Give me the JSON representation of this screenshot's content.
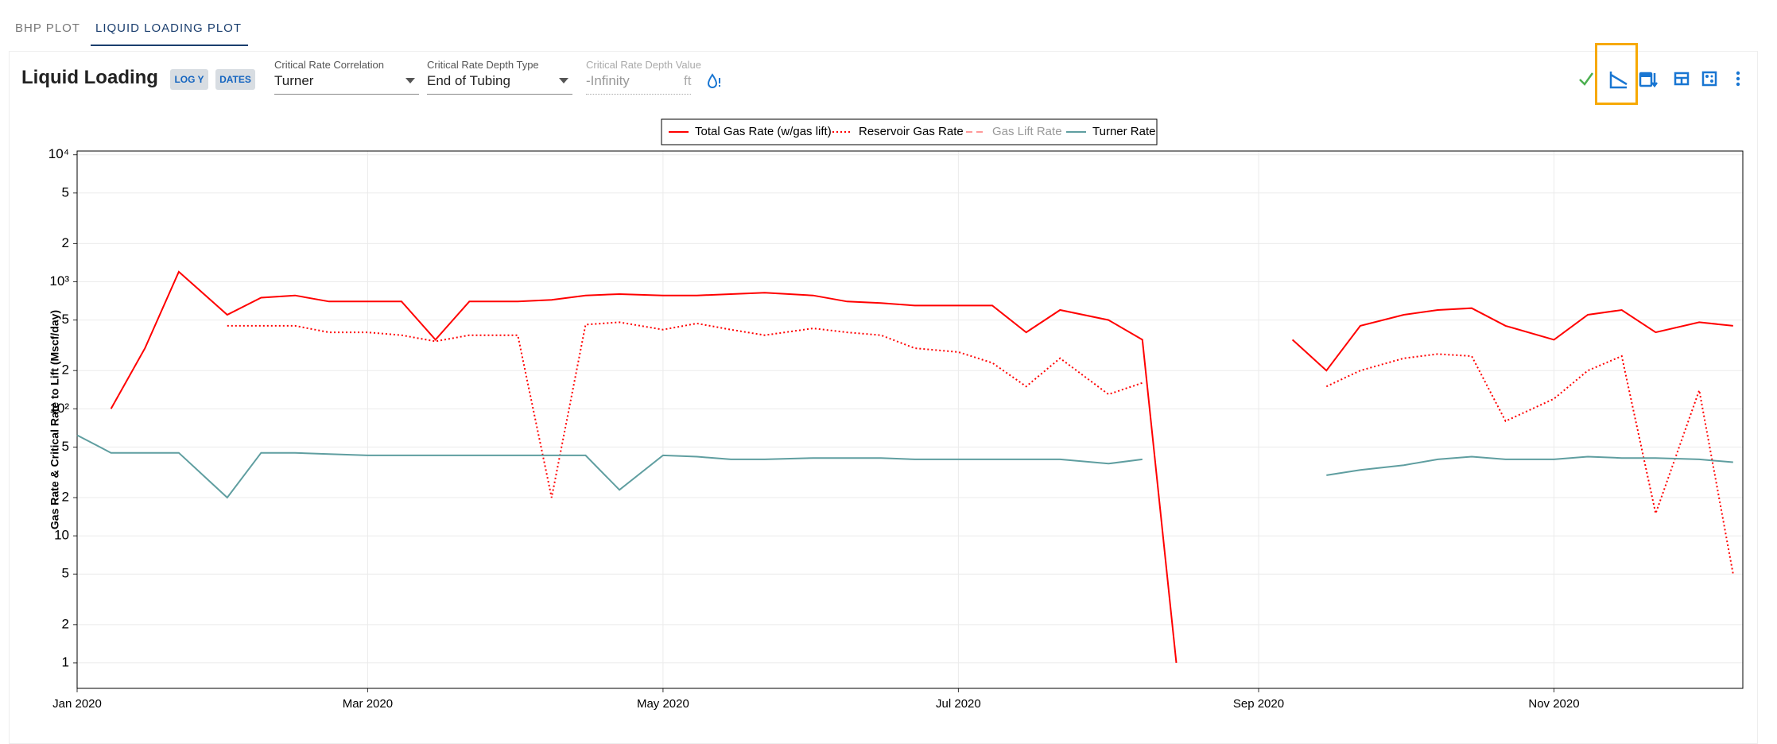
{
  "tabs": [
    "BHP PLOT",
    "LIQUID LOADING PLOT"
  ],
  "header": {
    "title": "Liquid Loading",
    "buttons": [
      "LOG Y",
      "DATES"
    ]
  },
  "controls": [
    {
      "label": "Critical Rate Correlation",
      "value": "Turner"
    },
    {
      "label": "Critical Rate Depth Type",
      "value": "End of Tubing"
    },
    {
      "label": "Critical Rate Depth Value",
      "value": "-Infinity",
      "unit": "ft"
    }
  ],
  "chart_data": {
    "type": "line",
    "y_label": "Gas Rate & Critical Rate to Lift (Mscf/day)",
    "log_y": true,
    "grid": true,
    "xlim": [
      "2020-01-01",
      "2020-12-10"
    ],
    "xticks": [
      {
        "value": "2020-01-01",
        "label": "Jan 2020"
      },
      {
        "value": "2020-03-01",
        "label": "Mar 2020"
      },
      {
        "value": "2020-05-01",
        "label": "May 2020"
      },
      {
        "value": "2020-07-01",
        "label": "Jul 2020"
      },
      {
        "value": "2020-09-01",
        "label": "Sep 2020"
      },
      {
        "value": "2020-11-01",
        "label": "Nov 2020"
      }
    ],
    "ylim": [
      0.63,
      10700
    ],
    "yticks": [
      1,
      2,
      5,
      10,
      {
        "value": 20,
        "label": "2"
      },
      {
        "value": 50,
        "label": "5"
      },
      {
        "value": 100,
        "label": "10²"
      },
      {
        "value": 200,
        "label": "2"
      },
      {
        "value": 500,
        "label": "5"
      },
      {
        "value": 1000,
        "label": "10³"
      },
      {
        "value": 2000,
        "label": "2"
      },
      {
        "value": 5000,
        "label": "5"
      },
      {
        "value": 10000,
        "label": "10⁴"
      }
    ],
    "x": [
      "2020-01-01",
      "2020-01-08",
      "2020-01-15",
      "2020-01-22",
      "2020-02-01",
      "2020-02-08",
      "2020-02-15",
      "2020-02-22",
      "2020-03-01",
      "2020-03-08",
      "2020-03-15",
      "2020-03-22",
      "2020-04-01",
      "2020-04-08",
      "2020-04-15",
      "2020-04-22",
      "2020-05-01",
      "2020-05-08",
      "2020-05-15",
      "2020-05-22",
      "2020-06-01",
      "2020-06-08",
      "2020-06-15",
      "2020-06-22",
      "2020-07-01",
      "2020-07-08",
      "2020-07-15",
      "2020-07-22",
      "2020-08-01",
      "2020-08-08",
      "2020-08-15",
      "2020-08-22",
      "2020-09-01",
      "2020-09-08",
      "2020-09-15",
      "2020-09-22",
      "2020-10-01",
      "2020-10-08",
      "2020-10-15",
      "2020-10-22",
      "2020-11-01",
      "2020-11-08",
      "2020-11-15",
      "2020-11-22",
      "2020-12-01",
      "2020-12-08"
    ],
    "series": [
      {
        "name": "Total Gas Rate (w/gas lift)",
        "color": "#ff0000",
        "dash": "solid",
        "values": [
          null,
          100,
          300,
          1200,
          550,
          750,
          780,
          700,
          700,
          700,
          350,
          700,
          700,
          720,
          780,
          800,
          780,
          780,
          800,
          820,
          780,
          700,
          680,
          650,
          650,
          650,
          400,
          600,
          500,
          350,
          1,
          null,
          null,
          350,
          200,
          450,
          550,
          600,
          620,
          450,
          350,
          550,
          600,
          400,
          480,
          450
        ]
      },
      {
        "name": "Reservoir Gas Rate",
        "color": "#ff0000",
        "dash": "dotted",
        "values": [
          null,
          null,
          null,
          null,
          450,
          450,
          450,
          400,
          400,
          380,
          340,
          380,
          380,
          20,
          460,
          480,
          420,
          470,
          420,
          380,
          430,
          400,
          380,
          300,
          280,
          230,
          150,
          250,
          130,
          160,
          null,
          null,
          null,
          null,
          150,
          200,
          250,
          270,
          260,
          80,
          120,
          200,
          260,
          15,
          140,
          5
        ]
      },
      {
        "name": "Gas Lift Rate",
        "color": "#ff9999",
        "dash": "dashed",
        "hidden": true,
        "values": [
          null,
          null,
          null,
          null,
          null,
          null,
          null,
          null,
          null,
          null,
          null,
          null,
          null,
          null,
          null,
          null,
          null,
          null,
          null,
          null,
          null,
          null,
          null,
          null,
          null,
          null,
          null,
          null,
          null,
          null,
          null,
          null,
          null,
          null,
          null,
          null,
          null,
          null,
          null,
          null,
          null,
          null,
          null,
          null,
          null,
          null
        ]
      },
      {
        "name": "Turner Rate",
        "color": "#5f9ea0",
        "dash": "solid",
        "values": [
          62,
          45,
          45,
          45,
          20,
          45,
          45,
          44,
          43,
          43,
          43,
          43,
          43,
          43,
          43,
          23,
          43,
          42,
          40,
          40,
          41,
          41,
          41,
          40,
          40,
          40,
          40,
          40,
          37,
          40,
          null,
          null,
          null,
          null,
          30,
          33,
          36,
          40,
          42,
          40,
          40,
          42,
          41,
          41,
          40,
          38
        ]
      }
    ]
  }
}
